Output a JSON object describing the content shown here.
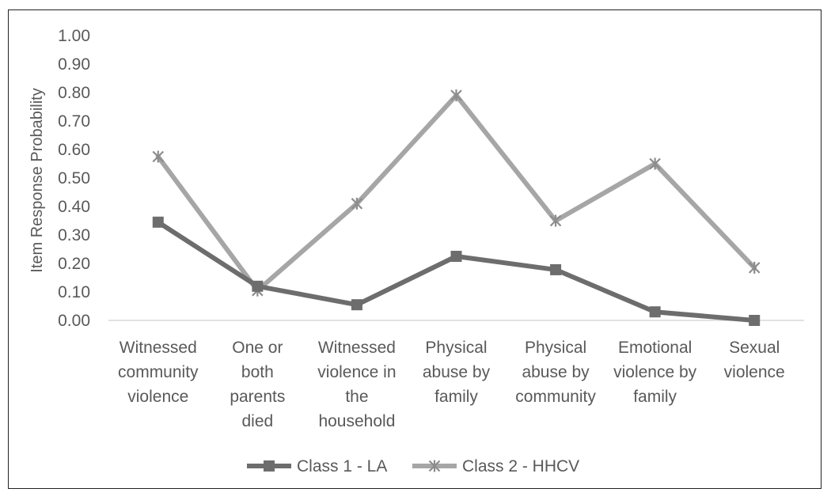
{
  "chart_data": {
    "type": "line",
    "title": "",
    "xlabel": "",
    "ylabel": "Item Response Probability",
    "ylim": [
      0,
      1.0
    ],
    "yticks": [
      "0.00",
      "0.10",
      "0.20",
      "0.30",
      "0.40",
      "0.50",
      "0.60",
      "0.70",
      "0.80",
      "0.90",
      "1.00"
    ],
    "grid": false,
    "legend_position": "bottom",
    "categories": [
      [
        "Witnessed",
        "community",
        "violence"
      ],
      [
        "One or",
        "both",
        "parents",
        "died"
      ],
      [
        "Witnessed",
        "violence in",
        "the",
        "household"
      ],
      [
        "Physical",
        "abuse by",
        "family"
      ],
      [
        "Physical",
        "abuse by",
        "community"
      ],
      [
        "Emotional",
        "violence by",
        "family"
      ],
      [
        "Sexual",
        "violence"
      ]
    ],
    "series": [
      {
        "name": "Class 1 - LA",
        "marker": "square",
        "color": "#6d6d6d",
        "values": [
          0.345,
          0.12,
          0.055,
          0.225,
          0.178,
          0.03,
          0.0
        ]
      },
      {
        "name": "Class 2 - HHCV",
        "marker": "x-star",
        "color": "#a6a6a6",
        "values": [
          0.575,
          0.105,
          0.41,
          0.79,
          0.35,
          0.55,
          0.185
        ]
      }
    ]
  }
}
